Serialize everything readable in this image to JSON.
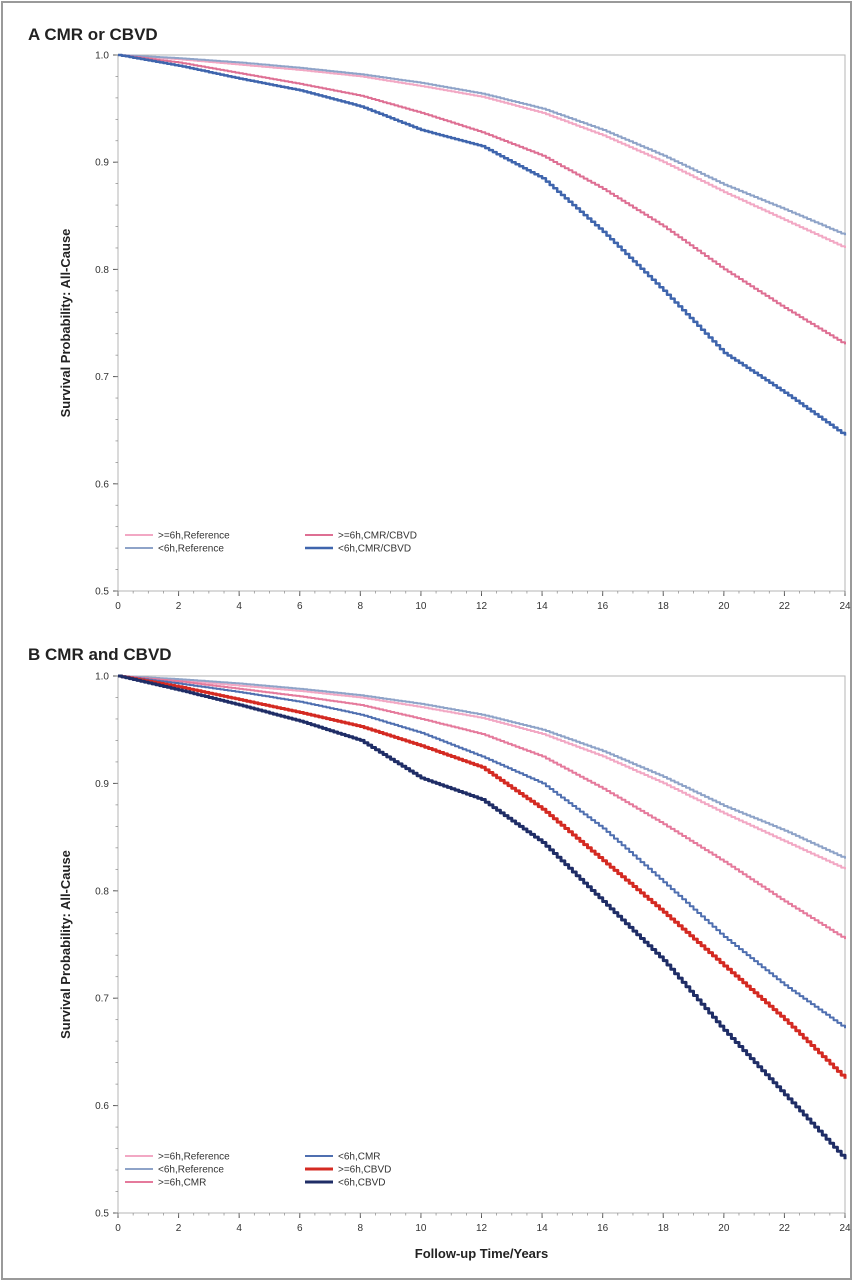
{
  "chart_data": [
    {
      "type": "line",
      "panel_label": "A  CMR or CBVD",
      "ylabel": "Survival Probability: All-Cause",
      "xlabel": "",
      "xlim": [
        0,
        24
      ],
      "ylim": [
        0.5,
        1.0
      ],
      "x_ticks": [
        0,
        2,
        4,
        6,
        8,
        10,
        12,
        14,
        16,
        18,
        20,
        22,
        24
      ],
      "y_ticks": [
        0.5,
        0.6,
        0.7,
        0.8,
        0.9,
        1.0
      ],
      "y_tick_labels": [
        "0.5",
        "0.6",
        "0.7",
        "0.8",
        "0.9",
        "1.0"
      ],
      "legend_position": "bottom-left",
      "series": [
        {
          "name": ">=6h,Reference",
          "color": "#f2a8c4",
          "width": 2,
          "x": [
            0,
            2,
            4,
            6,
            8,
            10,
            12,
            14,
            16,
            18,
            20,
            22,
            24
          ],
          "y": [
            1.0,
            0.996,
            0.991,
            0.986,
            0.98,
            0.971,
            0.961,
            0.946,
            0.925,
            0.9,
            0.872,
            0.846,
            0.82
          ]
        },
        {
          "name": "<6h,Reference",
          "color": "#8ea3c8",
          "width": 2,
          "x": [
            0,
            2,
            4,
            6,
            8,
            10,
            12,
            14,
            16,
            18,
            20,
            22,
            24
          ],
          "y": [
            1.0,
            0.997,
            0.993,
            0.988,
            0.982,
            0.974,
            0.964,
            0.95,
            0.93,
            0.906,
            0.879,
            0.856,
            0.832
          ]
        },
        {
          "name": ">=6h,CMR/CBVD",
          "color": "#de6f93",
          "width": 2,
          "x": [
            0,
            2,
            4,
            6,
            8,
            10,
            12,
            14,
            16,
            18,
            20,
            22,
            24
          ],
          "y": [
            1.0,
            0.993,
            0.983,
            0.973,
            0.962,
            0.946,
            0.928,
            0.906,
            0.875,
            0.84,
            0.8,
            0.764,
            0.73
          ]
        },
        {
          "name": "<6h,CMR/CBVD",
          "color": "#3f65ad",
          "width": 2.5,
          "x": [
            0,
            2,
            4,
            6,
            8,
            10,
            12,
            14,
            16,
            18,
            20,
            22,
            24
          ],
          "y": [
            1.0,
            0.99,
            0.978,
            0.967,
            0.952,
            0.93,
            0.915,
            0.885,
            0.835,
            0.78,
            0.722,
            0.685,
            0.645
          ]
        }
      ]
    },
    {
      "type": "line",
      "panel_label": "B  CMR and CBVD",
      "ylabel": "Survival Probability: All-Cause",
      "xlabel": "Follow-up Time/Years",
      "xlim": [
        0,
        24
      ],
      "ylim": [
        0.5,
        1.0
      ],
      "x_ticks": [
        0,
        2,
        4,
        6,
        8,
        10,
        12,
        14,
        16,
        18,
        20,
        22,
        24
      ],
      "y_ticks": [
        0.5,
        0.6,
        0.7,
        0.8,
        0.9,
        1.0
      ],
      "y_tick_labels": [
        "0.5",
        "0.6",
        "0.7",
        "0.8",
        "0.9",
        "1.0"
      ],
      "legend_position": "bottom-left",
      "series": [
        {
          "name": ">=6h,Reference",
          "color": "#f2a8c4",
          "width": 2,
          "x": [
            0,
            2,
            4,
            6,
            8,
            10,
            12,
            14,
            16,
            18,
            20,
            22,
            24
          ],
          "y": [
            1.0,
            0.996,
            0.991,
            0.986,
            0.98,
            0.971,
            0.961,
            0.946,
            0.925,
            0.9,
            0.872,
            0.846,
            0.82
          ]
        },
        {
          "name": "<6h,Reference",
          "color": "#8ea3c8",
          "width": 2,
          "x": [
            0,
            2,
            4,
            6,
            8,
            10,
            12,
            14,
            16,
            18,
            20,
            22,
            24
          ],
          "y": [
            1.0,
            0.997,
            0.993,
            0.988,
            0.982,
            0.974,
            0.964,
            0.95,
            0.93,
            0.906,
            0.879,
            0.856,
            0.83
          ]
        },
        {
          "name": ">=6h,CMR",
          "color": "#e57a9c",
          "width": 2,
          "x": [
            0,
            2,
            4,
            6,
            8,
            10,
            12,
            14,
            16,
            18,
            20,
            22,
            24
          ],
          "y": [
            1.0,
            0.995,
            0.988,
            0.981,
            0.973,
            0.96,
            0.946,
            0.925,
            0.895,
            0.862,
            0.827,
            0.79,
            0.755
          ]
        },
        {
          "name": "<6h,CMR",
          "color": "#4f6fb0",
          "width": 2,
          "x": [
            0,
            2,
            4,
            6,
            8,
            10,
            12,
            14,
            16,
            18,
            20,
            22,
            24
          ],
          "y": [
            1.0,
            0.993,
            0.985,
            0.976,
            0.964,
            0.947,
            0.925,
            0.9,
            0.858,
            0.808,
            0.757,
            0.712,
            0.672
          ]
        },
        {
          "name": ">=6h,CBVD",
          "color": "#d42a22",
          "width": 3,
          "x": [
            0,
            2,
            4,
            6,
            8,
            10,
            12,
            14,
            16,
            18,
            20,
            22,
            24
          ],
          "y": [
            1.0,
            0.99,
            0.978,
            0.966,
            0.953,
            0.935,
            0.915,
            0.876,
            0.828,
            0.78,
            0.73,
            0.68,
            0.625
          ]
        },
        {
          "name": "<6h,CBVD",
          "color": "#1f2d66",
          "width": 3,
          "x": [
            0,
            2,
            4,
            6,
            8,
            10,
            12,
            14,
            16,
            18,
            20,
            22,
            24
          ],
          "y": [
            1.0,
            0.987,
            0.973,
            0.958,
            0.94,
            0.905,
            0.885,
            0.845,
            0.79,
            0.735,
            0.67,
            0.61,
            0.55
          ]
        }
      ]
    }
  ]
}
